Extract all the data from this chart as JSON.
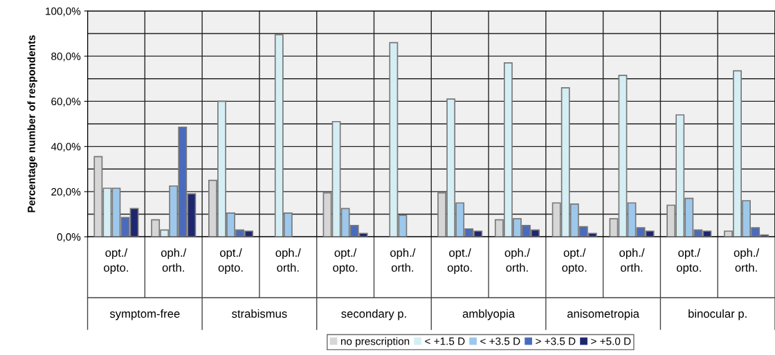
{
  "chart_data": {
    "type": "bar",
    "ylabel": "Percentage number of respondents",
    "categories": [
      "opt./\nopto.",
      "oph./\north.",
      "opt./\nopto.",
      "oph./\north.",
      "opt./\nopto.",
      "oph./\north.",
      "opt./\nopto.",
      "oph./\north.",
      "opt./\nopto.",
      "oph./\north.",
      "opt./\nopto.",
      "oph./\north."
    ],
    "annotations": [
      "symptom-free",
      "strabismus",
      "secondary p.",
      "amblyopia",
      "anisometropia",
      "binocular p."
    ],
    "series": [
      {
        "name": "no prescription",
        "color": "#d6d6d6",
        "values": [
          35.5,
          7.5,
          25,
          null,
          19.5,
          null,
          19.5,
          7.5,
          15,
          8,
          14,
          2.5
        ]
      },
      {
        "name": "< +1.5 D",
        "color": "#d4eef4",
        "values": [
          21.5,
          3,
          60,
          89.5,
          51,
          86,
          61,
          77,
          66,
          71.5,
          54,
          73.5
        ]
      },
      {
        "name": "< +3.5 D",
        "color": "#9dc8ec",
        "values": [
          21.5,
          22.5,
          10.5,
          10.5,
          12.5,
          9.5,
          15,
          8,
          14.5,
          15,
          17,
          16
        ]
      },
      {
        "name": "> +3.5 D",
        "color": "#4a6bbd",
        "values": [
          8.5,
          48.5,
          3,
          null,
          5,
          null,
          3.5,
          5,
          4.5,
          4,
          3,
          4
        ]
      },
      {
        "name": "> +5.0 D",
        "color": "#1f2670",
        "values": [
          12.5,
          19,
          2.5,
          null,
          1.5,
          null,
          2.5,
          3,
          1.5,
          2.5,
          2.5,
          0.8
        ]
      }
    ],
    "ylim": [
      0,
      100
    ],
    "yticks": [
      {
        "value": 0,
        "label": "0,0%"
      },
      {
        "value": 10,
        "label": null
      },
      {
        "value": 20,
        "label": "20,0%"
      },
      {
        "value": 30,
        "label": null
      },
      {
        "value": 40,
        "label": "40,0%"
      },
      {
        "value": 50,
        "label": null
      },
      {
        "value": 60,
        "label": "60,0%"
      },
      {
        "value": 70,
        "label": null
      },
      {
        "value": 80,
        "label": "80,0%"
      },
      {
        "value": 90,
        "label": null
      },
      {
        "value": 100,
        "label": "100,0%"
      }
    ],
    "grid": true,
    "legend": "bottom"
  }
}
